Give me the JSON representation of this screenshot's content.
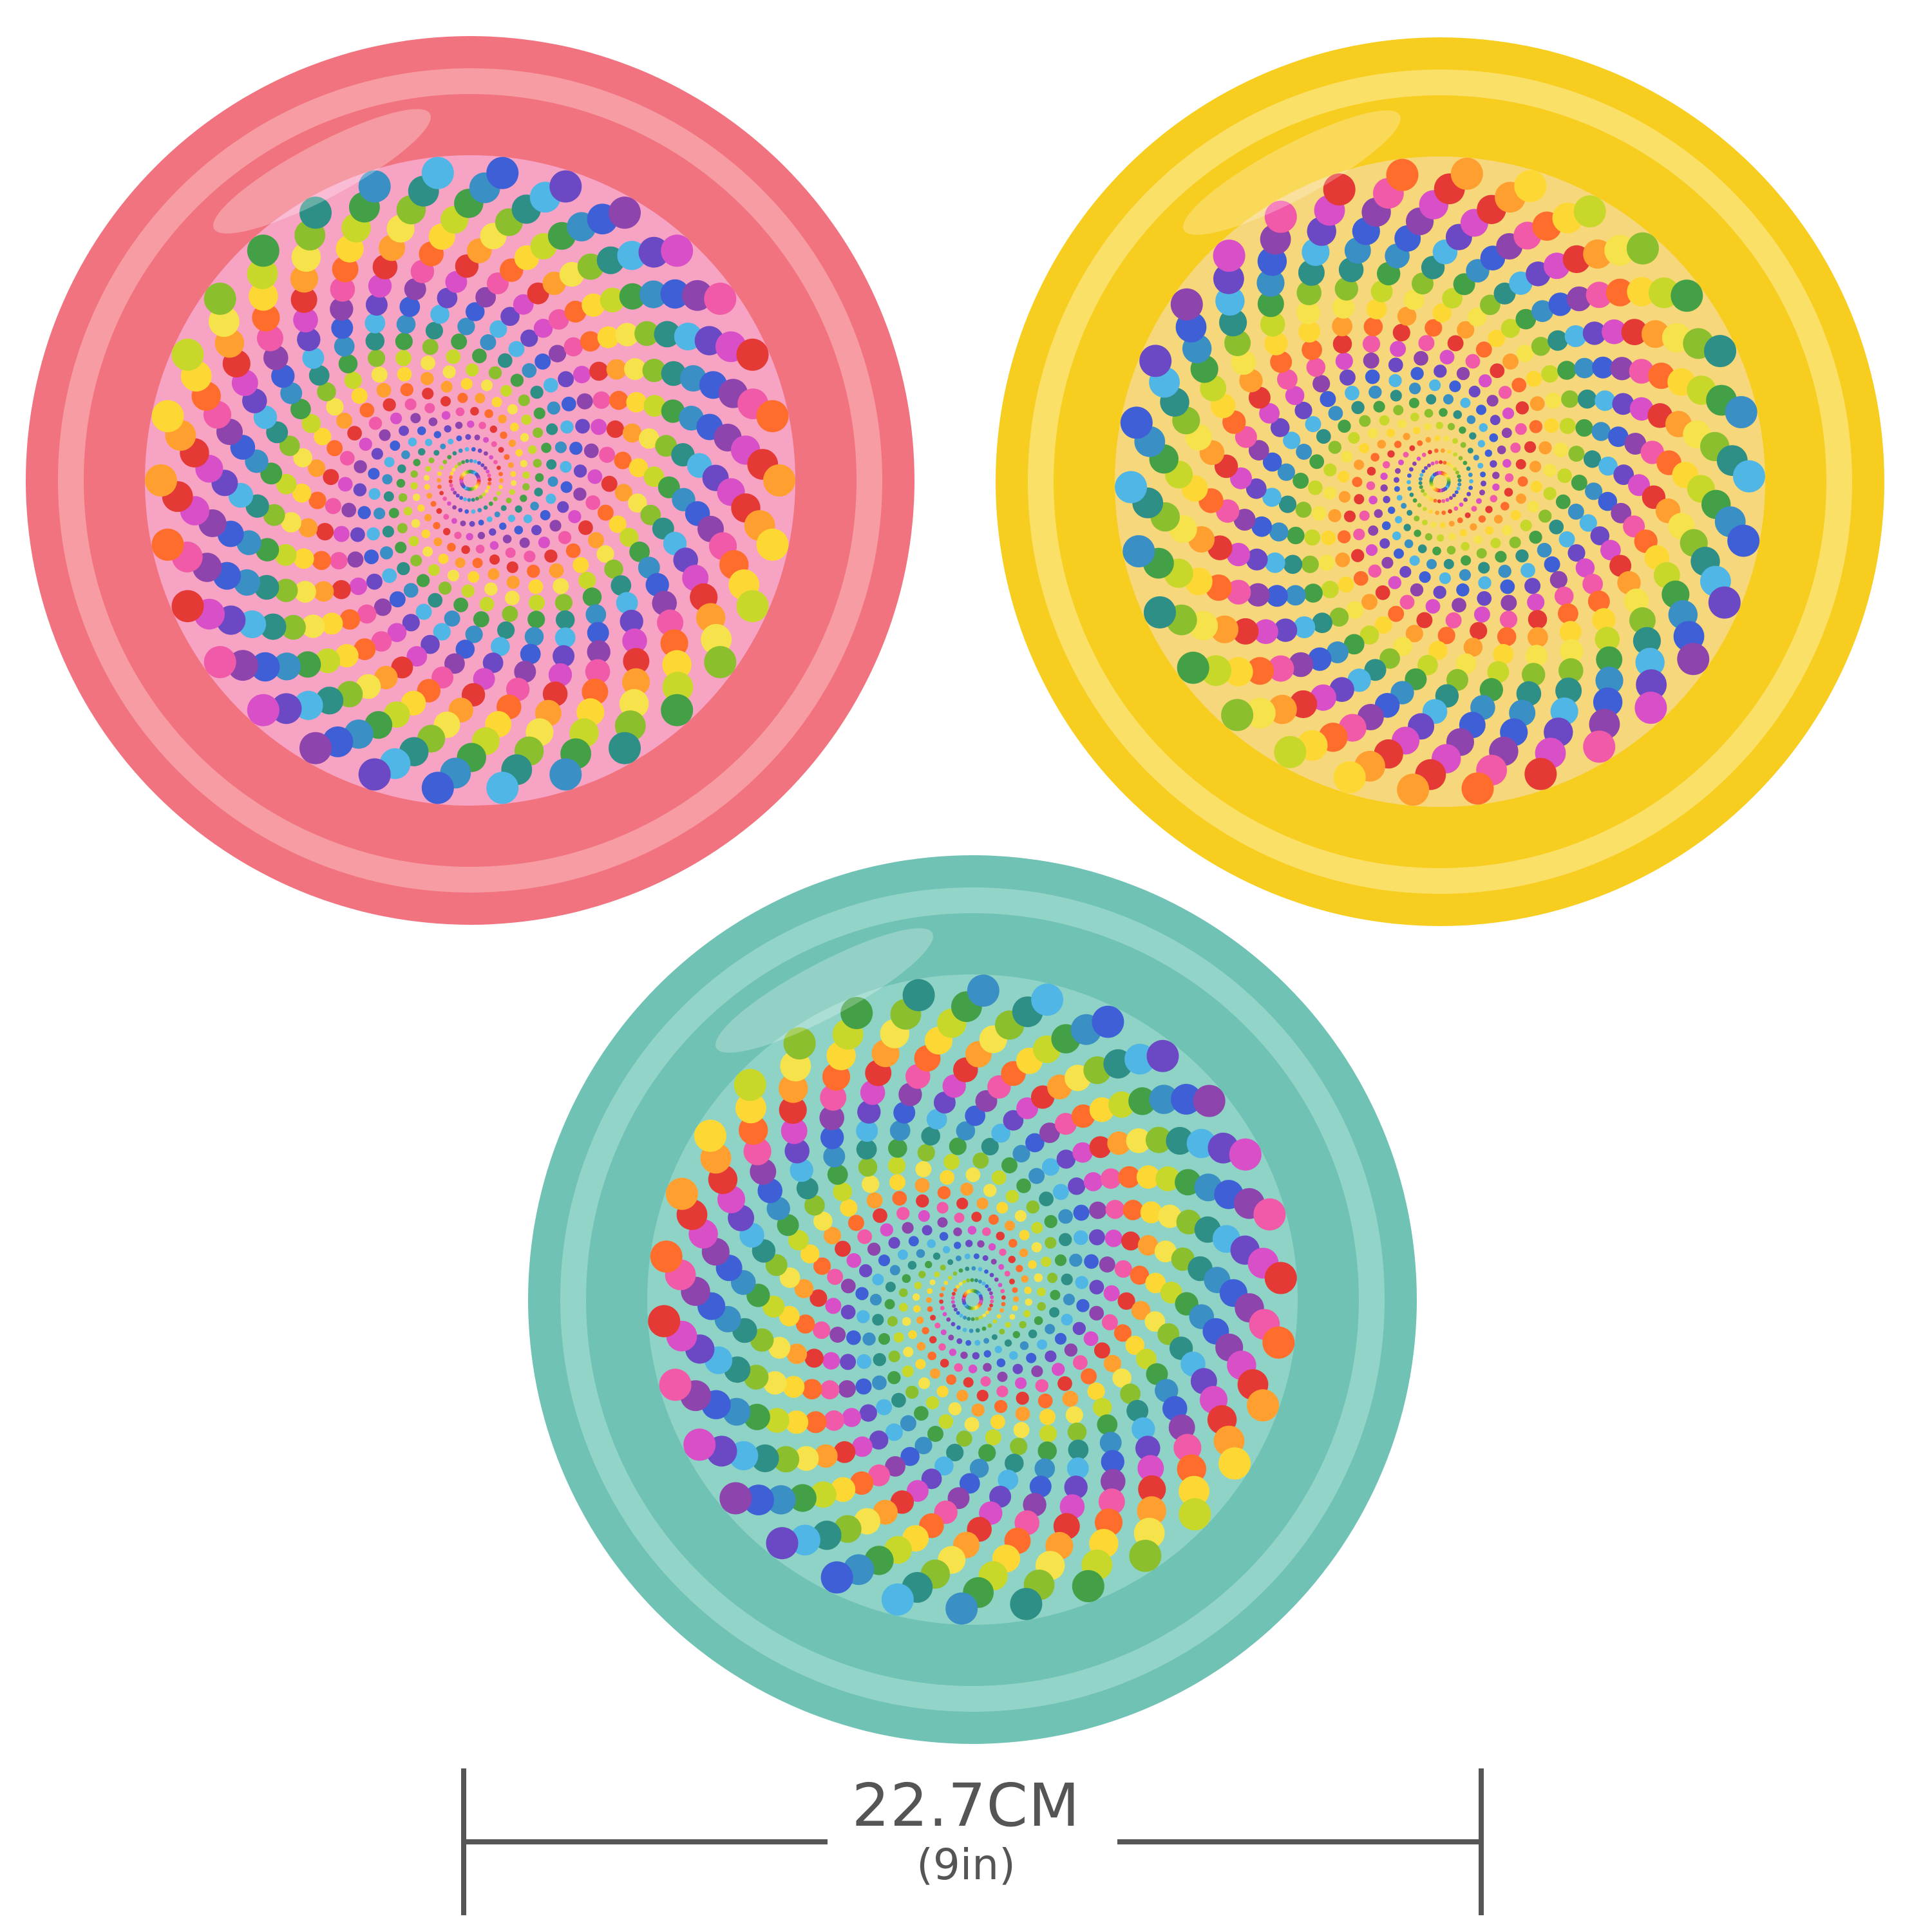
{
  "product": {
    "discs": [
      {
        "id": "pink",
        "body_color": "#f1737f",
        "rim_highlight": "#f79ca2",
        "label_bg": "#f7a3c4",
        "pattern": "rainbow-dot-spiral"
      },
      {
        "id": "yellow",
        "body_color": "#f7cd1f",
        "rim_highlight": "#fbe067",
        "label_bg": "#f7d77c",
        "pattern": "rainbow-dot-spiral"
      },
      {
        "id": "teal",
        "body_color": "#6fc2b4",
        "rim_highlight": "#93d4c9",
        "label_bg": "#8fd3c6",
        "pattern": "rainbow-dot-spiral"
      }
    ],
    "dot_palette": [
      "#e53935",
      "#ff6d2d",
      "#ff9f2f",
      "#fdd835",
      "#f6e34b",
      "#c8d82a",
      "#8bbf2e",
      "#43a047",
      "#2e8f86",
      "#3a8fc4",
      "#4fb6e6",
      "#3f5fd6",
      "#6b48c4",
      "#8e44ad",
      "#d94fc7",
      "#f05aa8"
    ]
  },
  "measurement": {
    "primary": "22.7CM",
    "secondary": "(9in)",
    "line_color": "#555555"
  }
}
